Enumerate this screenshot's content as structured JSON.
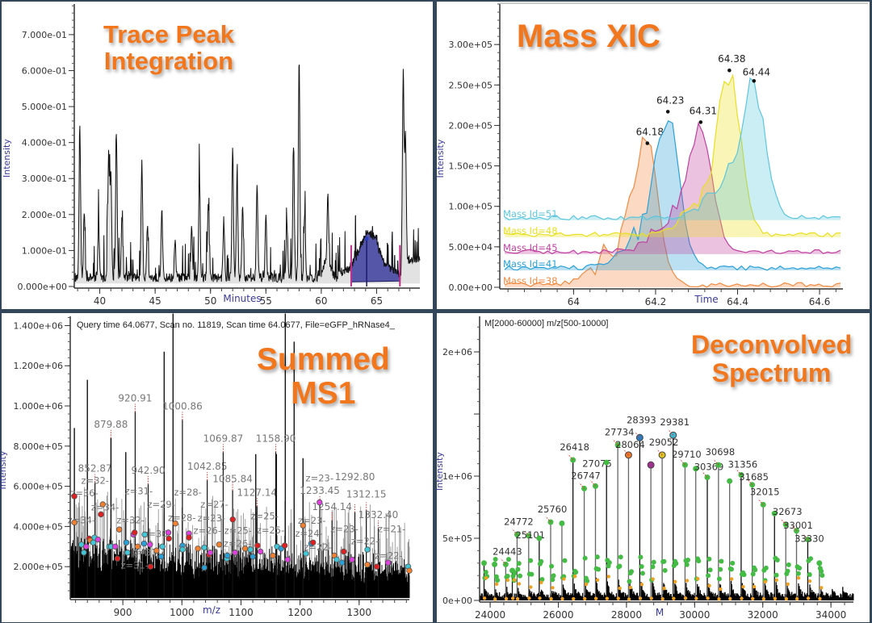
{
  "panels": {
    "trace": {
      "title_line1": "Trace Peak",
      "title_line2": "Integration"
    },
    "xic": {
      "title": "Mass XIC"
    },
    "ms1": {
      "title_line1": "Summed",
      "title_line2": "MS1",
      "header": "Query time 64.0677, Scan no. 11819, Scan time 64.0677, File=eGFP_hRNase4_"
    },
    "deconv": {
      "title_line1": "Deconvolved",
      "title_line2": "Spectrum",
      "header": "M[2000-60000] m/z[500-10000]"
    }
  },
  "colors": {
    "title": "#f2761c",
    "axis_label": "#3a3a9a",
    "integration_fill": "#5656a8",
    "integration_bounds": "#c0308a"
  },
  "chart_data": [
    {
      "type": "line",
      "name": "trace",
      "xlabel": "Minutes",
      "ylabel": "Intensity",
      "xlim": [
        37.7,
        68.9
      ],
      "ylim": [
        0,
        0.785
      ],
      "xticks": [
        40,
        45,
        50,
        55,
        60,
        65
      ],
      "yticks": [
        0,
        0.1,
        0.2,
        0.3,
        0.4,
        0.5,
        0.6,
        0.7
      ],
      "ytick_labels": [
        "0.000e+00",
        "1.000e-01",
        "2.000e-01",
        "3.000e-01",
        "4.000e-01",
        "5.000e-01",
        "6.000e-01",
        "7.000e-01"
      ],
      "peaks": [
        [
          38.2,
          0.42
        ],
        [
          38.6,
          0.18
        ],
        [
          39.9,
          0.15
        ],
        [
          40.8,
          0.35
        ],
        [
          41.0,
          0.3
        ],
        [
          41.5,
          0.39
        ],
        [
          42.0,
          0.16
        ],
        [
          43.8,
          0.33
        ],
        [
          44.3,
          0.15
        ],
        [
          45.6,
          0.19
        ],
        [
          46.8,
          0.1
        ],
        [
          48.3,
          0.14
        ],
        [
          49.0,
          0.28
        ],
        [
          49.8,
          0.21
        ],
        [
          51.2,
          0.16
        ],
        [
          52.0,
          0.37
        ],
        [
          52.4,
          0.29
        ],
        [
          52.9,
          0.2
        ],
        [
          54.2,
          0.27
        ],
        [
          55.0,
          0.17
        ],
        [
          56.9,
          0.15
        ],
        [
          57.5,
          0.37
        ],
        [
          58.0,
          0.6
        ],
        [
          58.5,
          0.18
        ],
        [
          60.6,
          0.18
        ],
        [
          67.4,
          0.52
        ],
        [
          67.6,
          0.34
        ]
      ],
      "integration": {
        "start": 62.7,
        "end": 67.1,
        "apex_time": 64.1,
        "apex_intensity": 0.13
      }
    },
    {
      "type": "area",
      "name": "xic",
      "xlabel": "Time",
      "ylabel": "Intensity",
      "xlim": [
        63.82,
        64.657
      ],
      "ylim": [
        0,
        350000
      ],
      "xticks": [
        64,
        64.2,
        64.4,
        64.6
      ],
      "xtick_labels": [
        "64",
        "64.2",
        "64.4",
        "64.6"
      ],
      "yticks": [
        0,
        50000,
        100000,
        150000,
        200000,
        250000,
        300000
      ],
      "ytick_labels": [
        "0.00e+00",
        "5.00e+04",
        "1.00e+05",
        "1.50e+05",
        "2.00e+05",
        "2.50e+05",
        "3.00e+05"
      ],
      "series": [
        {
          "name": "Mass Id=51",
          "color": "#5cc6dc",
          "baseline": 83000,
          "apex_time": 64.44,
          "apex": 255000,
          "apex_label": "64.44"
        },
        {
          "name": "Mass Id=48",
          "color": "#e8e020",
          "baseline": 62000,
          "apex_time": 64.38,
          "apex": 268000,
          "apex_label": "64.38"
        },
        {
          "name": "Mass Id=45",
          "color": "#c040a0",
          "baseline": 41000,
          "apex_time": 64.31,
          "apex": 204000,
          "apex_label": "64.31"
        },
        {
          "name": "Mass Id=41",
          "color": "#2aa0d8",
          "baseline": 21000,
          "apex_time": 64.23,
          "apex": 217000,
          "apex_label": "64.23"
        },
        {
          "name": "Mass Id=38",
          "color": "#f28a40",
          "baseline": 0,
          "apex_time": 64.18,
          "apex": 178000,
          "apex_label": "64.18"
        }
      ]
    },
    {
      "type": "bar",
      "name": "ms1",
      "xlabel": "m/z",
      "ylabel": "Intensity",
      "xlim": [
        811,
        1385
      ],
      "ylim": [
        44000,
        1446000
      ],
      "xticks": [
        900,
        1000,
        1100,
        1200,
        1300
      ],
      "yticks": [
        200000,
        400000,
        600000,
        800000,
        1000000,
        1200000,
        1400000
      ],
      "ytick_labels": [
        "2.000e+05",
        "4.000e+05",
        "6.000e+05",
        "8.000e+05",
        "1.000e+06",
        "1.200e+06",
        "1.400e+06"
      ],
      "tall_peaks": [
        [
          818,
          890000
        ],
        [
          840,
          1130000
        ],
        [
          880,
          840000
        ],
        [
          905,
          770000
        ],
        [
          970,
          1270000
        ],
        [
          985,
          1460000
        ],
        [
          1175,
          1460000
        ],
        [
          1190,
          1320000
        ],
        [
          1160,
          760000
        ],
        [
          1205,
          740000
        ],
        [
          1125,
          760000
        ]
      ],
      "labeled_peaks": [
        {
          "mz": "852.87",
          "x": 852.87,
          "y": 620000
        },
        {
          "mz": "879.88",
          "x": 879.88,
          "y": 840000
        },
        {
          "mz": "920.91",
          "x": 920.91,
          "y": 970000
        },
        {
          "mz": "942.90",
          "x": 942.9,
          "y": 610000
        },
        {
          "mz": "1000.86",
          "x": 1000.86,
          "y": 930000
        },
        {
          "mz": "1042.85",
          "x": 1042.85,
          "y": 630000
        },
        {
          "mz": "1069.87",
          "x": 1069.87,
          "y": 770000
        },
        {
          "mz": "1085.84",
          "x": 1085.84,
          "y": 580000
        },
        {
          "mz": "1127.14",
          "x": 1127.14,
          "y": 500000
        },
        {
          "mz": "1158.90",
          "x": 1158.9,
          "y": 770000
        },
        {
          "mz": "1233.45",
          "x": 1233.45,
          "y": 510000
        },
        {
          "mz": "1254.14",
          "x": 1254.14,
          "y": 430000
        },
        {
          "mz": "1292.80",
          "x": 1292.8,
          "y": 470000
        },
        {
          "mz": "1312.15",
          "x": 1312.15,
          "y": 480000
        },
        {
          "mz": "1332.40",
          "x": 1332.4,
          "y": 390000
        }
      ],
      "charge_labels": [
        {
          "z": "z=32-",
          "x": 853,
          "y": 660000
        },
        {
          "z": "z=36-",
          "x": 835,
          "y": 610000
        },
        {
          "z": "z=34-",
          "x": 870,
          "y": 600000
        },
        {
          "z": "z=34-",
          "x": 830,
          "y": 560000
        },
        {
          "z": "z=31-",
          "x": 927,
          "y": 560000
        },
        {
          "z": "z=32-",
          "x": 913,
          "y": 475000
        },
        {
          "z": "z=29-",
          "x": 965,
          "y": 530000
        },
        {
          "z": "z=30-",
          "x": 958,
          "y": 480000
        },
        {
          "z": "z=28-",
          "x": 1010,
          "y": 530000
        },
        {
          "z": "z=28-",
          "x": 1000,
          "y": 475000
        },
        {
          "z": "z=27-",
          "x": 1055,
          "y": 530000
        },
        {
          "z": "z=23-",
          "x": 1050,
          "y": 450000
        },
        {
          "z": "z=25-",
          "x": 1095,
          "y": 460000
        },
        {
          "z": "z=26-",
          "x": 1043,
          "y": 400000
        },
        {
          "z": "z=26-",
          "x": 1094,
          "y": 395000
        },
        {
          "z": "z=25-",
          "x": 1140,
          "y": 435000
        },
        {
          "z": "z=25-",
          "x": 1150,
          "y": 365000
        },
        {
          "z": "z=23-",
          "x": 1220,
          "y": 450000
        },
        {
          "z": "z=24-",
          "x": 1215,
          "y": 385000
        },
        {
          "z": "z=23-",
          "x": 1233,
          "y": 565000
        },
        {
          "z": "z=22-",
          "x": 1230,
          "y": 330000
        },
        {
          "z": "z=23-",
          "x": 1275,
          "y": 395000
        },
        {
          "z": "z=22-",
          "x": 1310,
          "y": 395000
        },
        {
          "z": "z=21-",
          "x": 1355,
          "y": 395000
        },
        {
          "z": "z=22-",
          "x": 1350,
          "y": 335000
        },
        {
          "z": "z=31-",
          "x": 940,
          "y": 255000
        },
        {
          "z": "z=31-",
          "x": 920,
          "y": 395000
        }
      ],
      "ions": [
        [
          818,
          550000,
          "#e02020"
        ],
        [
          818,
          420000,
          "#f08030"
        ],
        [
          830,
          310000,
          "#40c8d8"
        ],
        [
          834,
          270000,
          "#40c8d8"
        ],
        [
          838,
          300000,
          "#e040e0"
        ],
        [
          843,
          340000,
          "#e02020"
        ],
        [
          845,
          330000,
          "#f08030"
        ],
        [
          850,
          320000,
          "#40c8d8"
        ],
        [
          852,
          345000,
          "#40c8d8"
        ],
        [
          858,
          335000,
          "#e040e0"
        ],
        [
          863,
          460000,
          "#e02020"
        ],
        [
          866,
          510000,
          "#f08030"
        ],
        [
          877,
          300000,
          "#40c8d8"
        ],
        [
          880,
          300000,
          "#40c8d8"
        ],
        [
          887,
          300000,
          "#e040e0"
        ],
        [
          891,
          240000,
          "#e02020"
        ],
        [
          894,
          385000,
          "#f08030"
        ],
        [
          906,
          320000,
          "#2aa0d8"
        ],
        [
          908,
          270000,
          "#40c8d8"
        ],
        [
          918,
          360000,
          "#e040e0"
        ],
        [
          920,
          370000,
          "#e02020"
        ],
        [
          925,
          300000,
          "#f08030"
        ],
        [
          936,
          315000,
          "#2aa0d8"
        ],
        [
          937,
          360000,
          "#40c8d8"
        ],
        [
          946,
          310000,
          "#e040e0"
        ],
        [
          947,
          200000,
          "#e02020"
        ],
        [
          957,
          280000,
          "#f08030"
        ],
        [
          965,
          250000,
          "#2aa0d8"
        ],
        [
          967,
          300000,
          "#40c8d8"
        ],
        [
          977,
          370000,
          "#e040e0"
        ],
        [
          978,
          340000,
          "#e02020"
        ],
        [
          989,
          415000,
          "#f08030"
        ],
        [
          1001,
          305000,
          "#2aa0d8"
        ],
        [
          1001,
          285000,
          "#40c8d8"
        ],
        [
          1012,
          365000,
          "#e040e0"
        ],
        [
          1012,
          345000,
          "#e02020"
        ],
        [
          1027,
          290000,
          "#f08030"
        ],
        [
          1038,
          295000,
          "#40c8d8"
        ],
        [
          1038,
          195000,
          "#2aa0d8"
        ],
        [
          1046,
          260000,
          "#e02020"
        ],
        [
          1048,
          270000,
          "#e040e0"
        ],
        [
          1063,
          310000,
          "#f08030"
        ],
        [
          1076,
          240000,
          "#40c8d8"
        ],
        [
          1077,
          255000,
          "#2aa0d8"
        ],
        [
          1086,
          435000,
          "#e02020"
        ],
        [
          1090,
          270000,
          "#e040e0"
        ],
        [
          1107,
          290000,
          "#f08030"
        ],
        [
          1116,
          285000,
          "#40c8d8"
        ],
        [
          1120,
          250000,
          "#2aa0d8"
        ],
        [
          1128,
          305000,
          "#e02020"
        ],
        [
          1133,
          275000,
          "#e040e0"
        ],
        [
          1154,
          255000,
          "#f08030"
        ],
        [
          1161,
          300000,
          "#40c8d8"
        ],
        [
          1168,
          290000,
          "#2aa0d8"
        ],
        [
          1174,
          305000,
          "#e02020"
        ],
        [
          1179,
          235000,
          "#e040e0"
        ],
        [
          1205,
          405000,
          "#f08030"
        ],
        [
          1210,
          265000,
          "#40c8d8"
        ],
        [
          1219,
          315000,
          "#2aa0d8"
        ],
        [
          1222,
          320000,
          "#e02020"
        ],
        [
          1233,
          520000,
          "#e040e0"
        ],
        [
          1258,
          255000,
          "#f08030"
        ],
        [
          1262,
          235000,
          "#40c8d8"
        ],
        [
          1271,
          220000,
          "#2aa0d8"
        ],
        [
          1274,
          275000,
          "#e02020"
        ],
        [
          1288,
          235000,
          "#e040e0"
        ],
        [
          1314,
          285000,
          "#40c8d8"
        ],
        [
          1314,
          210000,
          "#f08030"
        ],
        [
          1330,
          200000,
          "#e02020"
        ],
        [
          1349,
          220000,
          "#e040e0"
        ],
        [
          1383,
          200000,
          "#40c8d8"
        ],
        [
          1385,
          180000,
          "#f08030"
        ]
      ]
    },
    {
      "type": "bar",
      "name": "deconv",
      "xlabel": "M",
      "ylabel": "Intensity",
      "xlim": [
        23690,
        34660
      ],
      "ylim": [
        0,
        2286000
      ],
      "xticks": [
        24000,
        26000,
        28000,
        30000,
        32000,
        34000
      ],
      "yticks": [
        0,
        500000,
        1000000,
        1500000,
        2000000
      ],
      "ytick_labels": [
        "0e+00",
        "5e+05",
        "1e+06",
        "",
        "2e+06"
      ],
      "peaks": [
        {
          "m": 23820,
          "y": 300000,
          "label": ""
        },
        {
          "m": 24130,
          "y": 290000,
          "label": ""
        },
        {
          "m": 24457,
          "y": 290000,
          "label": "24443"
        },
        {
          "m": 24650,
          "y": 240000,
          "label": ""
        },
        {
          "m": 24790,
          "y": 530000,
          "label": "24772"
        },
        {
          "m": 25130,
          "y": 520000,
          "label": "25101"
        },
        {
          "m": 25440,
          "y": 500000,
          "label": ""
        },
        {
          "m": 25775,
          "y": 630000,
          "label": "25760"
        },
        {
          "m": 26105,
          "y": 620000,
          "label": ""
        },
        {
          "m": 26430,
          "y": 1130000,
          "label": "26418"
        },
        {
          "m": 26760,
          "y": 900000,
          "label": "26747"
        },
        {
          "m": 27090,
          "y": 920000,
          "label": "27075"
        },
        {
          "m": 27415,
          "y": 1110000,
          "label": ""
        },
        {
          "m": 27745,
          "y": 1250000,
          "label": "27734"
        },
        {
          "m": 28060,
          "y": 1170000,
          "label": "28064",
          "color": "#e8782a"
        },
        {
          "m": 28390,
          "y": 1310000,
          "label": "28393",
          "color": "#2a7ec0"
        },
        {
          "m": 28716,
          "y": 1090000,
          "label": "",
          "color": "#a03090"
        },
        {
          "m": 29047,
          "y": 1170000,
          "label": "29052",
          "color": "#d8c020"
        },
        {
          "m": 29370,
          "y": 1330000,
          "label": "29381",
          "color": "#40b8d0"
        },
        {
          "m": 29718,
          "y": 1090000,
          "label": "29710"
        },
        {
          "m": 30033,
          "y": 1060000,
          "label": ""
        },
        {
          "m": 30372,
          "y": 990000,
          "label": "30369"
        },
        {
          "m": 30700,
          "y": 1090000,
          "label": "30698"
        },
        {
          "m": 31027,
          "y": 960000,
          "label": ""
        },
        {
          "m": 31365,
          "y": 1010000,
          "label": "31356"
        },
        {
          "m": 31690,
          "y": 930000,
          "label": "31685"
        },
        {
          "m": 32012,
          "y": 770000,
          "label": "32015"
        },
        {
          "m": 32344,
          "y": 700000,
          "label": ""
        },
        {
          "m": 32675,
          "y": 610000,
          "label": "32673"
        },
        {
          "m": 32990,
          "y": 560000,
          "label": "33001"
        },
        {
          "m": 33320,
          "y": 490000,
          "label": "33330"
        },
        {
          "m": 33660,
          "y": 300000,
          "label": ""
        }
      ]
    }
  ]
}
